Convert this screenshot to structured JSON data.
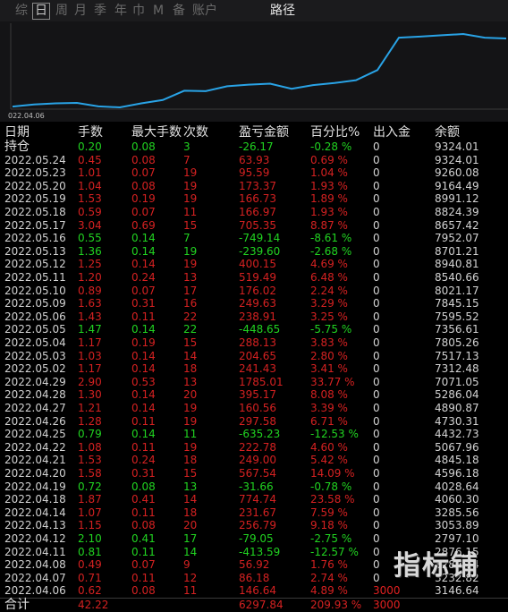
{
  "tabs": [
    "综",
    "日",
    "周",
    "月",
    "季",
    "年",
    "巾",
    "M",
    "备",
    "账户",
    "路径"
  ],
  "chart": {
    "x_label": "022.04.06",
    "line_color": "#29a3e6",
    "series": [
      3600,
      3700,
      3760,
      3780,
      3610,
      3560,
      3760,
      3920,
      4380,
      4360,
      4600,
      4680,
      4730,
      4480,
      4660,
      4760,
      4900,
      5400,
      7000,
      7050,
      7120,
      7180,
      7000,
      6960
    ]
  },
  "headers": [
    "日期",
    "手数",
    "最大手数",
    "次数",
    "盈亏金额",
    "百分比%",
    "出入金",
    "余额"
  ],
  "rows": [
    {
      "date": "持仓",
      "qty": "0.20",
      "max": "0.08",
      "cnt": "3",
      "pnl": "-26.17",
      "pct": "-0.28 %",
      "flow": "0",
      "bal": "9324.01",
      "dir": "green"
    },
    {
      "date": "2022.05.24",
      "qty": "0.45",
      "max": "0.08",
      "cnt": "7",
      "pnl": "63.93",
      "pct": "0.69 %",
      "flow": "0",
      "bal": "9324.01",
      "dir": "red"
    },
    {
      "date": "2022.05.23",
      "qty": "1.01",
      "max": "0.07",
      "cnt": "19",
      "pnl": "95.59",
      "pct": "1.04 %",
      "flow": "0",
      "bal": "9260.08",
      "dir": "red"
    },
    {
      "date": "2022.05.20",
      "qty": "1.04",
      "max": "0.08",
      "cnt": "19",
      "pnl": "173.37",
      "pct": "1.93 %",
      "flow": "0",
      "bal": "9164.49",
      "dir": "red"
    },
    {
      "date": "2022.05.19",
      "qty": "1.53",
      "max": "0.19",
      "cnt": "19",
      "pnl": "166.73",
      "pct": "1.89 %",
      "flow": "0",
      "bal": "8991.12",
      "dir": "red"
    },
    {
      "date": "2022.05.18",
      "qty": "0.59",
      "max": "0.07",
      "cnt": "11",
      "pnl": "166.97",
      "pct": "1.93 %",
      "flow": "0",
      "bal": "8824.39",
      "dir": "red"
    },
    {
      "date": "2022.05.17",
      "qty": "3.04",
      "max": "0.69",
      "cnt": "15",
      "pnl": "705.35",
      "pct": "8.87 %",
      "flow": "0",
      "bal": "8657.42",
      "dir": "red"
    },
    {
      "date": "2022.05.16",
      "qty": "0.55",
      "max": "0.14",
      "cnt": "7",
      "pnl": "-749.14",
      "pct": "-8.61 %",
      "flow": "0",
      "bal": "7952.07",
      "dir": "green"
    },
    {
      "date": "2022.05.13",
      "qty": "1.36",
      "max": "0.14",
      "cnt": "19",
      "pnl": "-239.60",
      "pct": "-2.68 %",
      "flow": "0",
      "bal": "8701.21",
      "dir": "green"
    },
    {
      "date": "2022.05.12",
      "qty": "1.25",
      "max": "0.14",
      "cnt": "19",
      "pnl": "400.15",
      "pct": "4.69 %",
      "flow": "0",
      "bal": "8940.81",
      "dir": "red"
    },
    {
      "date": "2022.05.11",
      "qty": "1.20",
      "max": "0.24",
      "cnt": "13",
      "pnl": "519.49",
      "pct": "6.48 %",
      "flow": "0",
      "bal": "8540.66",
      "dir": "red"
    },
    {
      "date": "2022.05.10",
      "qty": "0.89",
      "max": "0.07",
      "cnt": "17",
      "pnl": "176.02",
      "pct": "2.24 %",
      "flow": "0",
      "bal": "8021.17",
      "dir": "red"
    },
    {
      "date": "2022.05.09",
      "qty": "1.63",
      "max": "0.31",
      "cnt": "16",
      "pnl": "249.63",
      "pct": "3.29 %",
      "flow": "0",
      "bal": "7845.15",
      "dir": "red"
    },
    {
      "date": "2022.05.06",
      "qty": "1.43",
      "max": "0.11",
      "cnt": "22",
      "pnl": "238.91",
      "pct": "3.25 %",
      "flow": "0",
      "bal": "7595.52",
      "dir": "red"
    },
    {
      "date": "2022.05.05",
      "qty": "1.47",
      "max": "0.14",
      "cnt": "22",
      "pnl": "-448.65",
      "pct": "-5.75 %",
      "flow": "0",
      "bal": "7356.61",
      "dir": "green"
    },
    {
      "date": "2022.05.04",
      "qty": "1.17",
      "max": "0.19",
      "cnt": "15",
      "pnl": "288.13",
      "pct": "3.83 %",
      "flow": "0",
      "bal": "7805.26",
      "dir": "red"
    },
    {
      "date": "2022.05.03",
      "qty": "1.03",
      "max": "0.14",
      "cnt": "14",
      "pnl": "204.65",
      "pct": "2.80 %",
      "flow": "0",
      "bal": "7517.13",
      "dir": "red"
    },
    {
      "date": "2022.05.02",
      "qty": "1.17",
      "max": "0.14",
      "cnt": "18",
      "pnl": "241.43",
      "pct": "3.41 %",
      "flow": "0",
      "bal": "7312.48",
      "dir": "red"
    },
    {
      "date": "2022.04.29",
      "qty": "2.90",
      "max": "0.53",
      "cnt": "13",
      "pnl": "1785.01",
      "pct": "33.77 %",
      "flow": "0",
      "bal": "7071.05",
      "dir": "red"
    },
    {
      "date": "2022.04.28",
      "qty": "1.30",
      "max": "0.14",
      "cnt": "20",
      "pnl": "395.17",
      "pct": "8.08 %",
      "flow": "0",
      "bal": "5286.04",
      "dir": "red"
    },
    {
      "date": "2022.04.27",
      "qty": "1.21",
      "max": "0.14",
      "cnt": "19",
      "pnl": "160.56",
      "pct": "3.39 %",
      "flow": "0",
      "bal": "4890.87",
      "dir": "red"
    },
    {
      "date": "2022.04.26",
      "qty": "1.28",
      "max": "0.11",
      "cnt": "19",
      "pnl": "297.58",
      "pct": "6.71 %",
      "flow": "0",
      "bal": "4730.31",
      "dir": "red"
    },
    {
      "date": "2022.04.25",
      "qty": "0.79",
      "max": "0.14",
      "cnt": "11",
      "pnl": "-635.23",
      "pct": "-12.53 %",
      "flow": "0",
      "bal": "4432.73",
      "dir": "green"
    },
    {
      "date": "2022.04.22",
      "qty": "1.08",
      "max": "0.11",
      "cnt": "19",
      "pnl": "222.78",
      "pct": "4.60 %",
      "flow": "0",
      "bal": "5067.96",
      "dir": "red"
    },
    {
      "date": "2022.04.21",
      "qty": "1.53",
      "max": "0.24",
      "cnt": "18",
      "pnl": "249.00",
      "pct": "5.42 %",
      "flow": "0",
      "bal": "4845.18",
      "dir": "red"
    },
    {
      "date": "2022.04.20",
      "qty": "1.58",
      "max": "0.31",
      "cnt": "15",
      "pnl": "567.54",
      "pct": "14.09 %",
      "flow": "0",
      "bal": "4596.18",
      "dir": "red"
    },
    {
      "date": "2022.04.19",
      "qty": "0.72",
      "max": "0.08",
      "cnt": "13",
      "pnl": "-31.66",
      "pct": "-0.78 %",
      "flow": "0",
      "bal": "4028.64",
      "dir": "green"
    },
    {
      "date": "2022.04.18",
      "qty": "1.87",
      "max": "0.41",
      "cnt": "14",
      "pnl": "774.74",
      "pct": "23.58 %",
      "flow": "0",
      "bal": "4060.30",
      "dir": "red"
    },
    {
      "date": "2022.04.14",
      "qty": "1.07",
      "max": "0.11",
      "cnt": "18",
      "pnl": "231.67",
      "pct": "7.59 %",
      "flow": "0",
      "bal": "3285.56",
      "dir": "red"
    },
    {
      "date": "2022.04.13",
      "qty": "1.15",
      "max": "0.08",
      "cnt": "20",
      "pnl": "256.79",
      "pct": "9.18 %",
      "flow": "0",
      "bal": "3053.89",
      "dir": "red"
    },
    {
      "date": "2022.04.12",
      "qty": "2.10",
      "max": "0.41",
      "cnt": "17",
      "pnl": "-79.05",
      "pct": "-2.75 %",
      "flow": "0",
      "bal": "2797.10",
      "dir": "green"
    },
    {
      "date": "2022.04.11",
      "qty": "0.81",
      "max": "0.11",
      "cnt": "14",
      "pnl": "-413.59",
      "pct": "-12.57 %",
      "flow": "0",
      "bal": "2876.15",
      "dir": "green"
    },
    {
      "date": "2022.04.08",
      "qty": "0.49",
      "max": "0.07",
      "cnt": "9",
      "pnl": "56.92",
      "pct": "1.76 %",
      "flow": "0",
      "bal": "3289.74",
      "dir": "red"
    },
    {
      "date": "2022.04.07",
      "qty": "0.71",
      "max": "0.11",
      "cnt": "12",
      "pnl": "86.18",
      "pct": "2.74 %",
      "flow": "0",
      "bal": "3232.82",
      "dir": "red"
    },
    {
      "date": "2022.04.06",
      "qty": "0.62",
      "max": "0.08",
      "cnt": "11",
      "pnl": "146.64",
      "pct": "4.89 %",
      "flow": "3000",
      "bal": "3146.64",
      "dir": "red",
      "flowred": true
    }
  ],
  "total": {
    "date": "合计",
    "qty": "42.22",
    "max": "",
    "cnt": "",
    "pnl": "6297.84",
    "pct": "209.93 %",
    "flow": "3000",
    "bal": ""
  },
  "watermark": "指标铺",
  "colors": {
    "up": "#d42121",
    "down": "#21d321",
    "line": "#29a3e6"
  }
}
